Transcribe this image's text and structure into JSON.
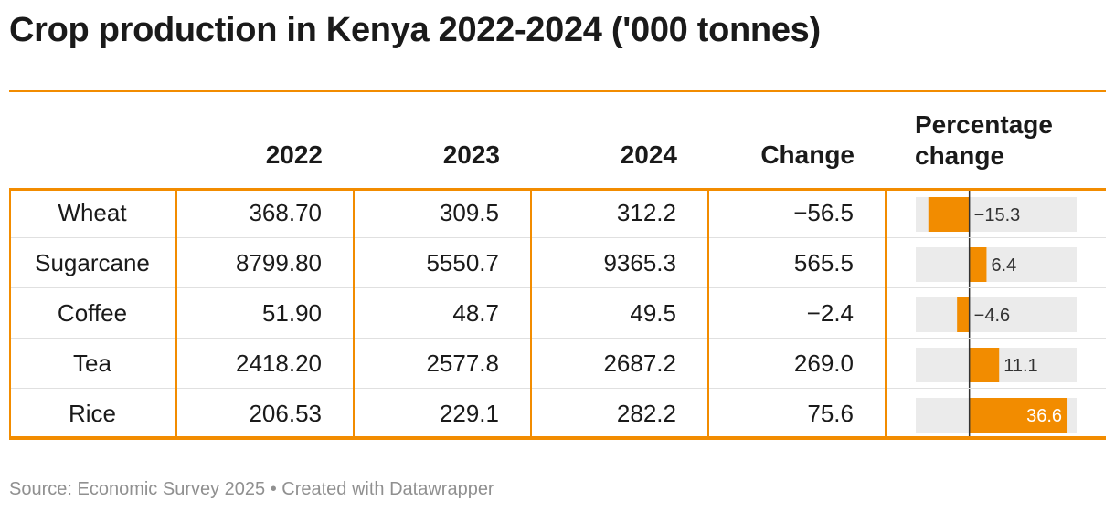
{
  "title": "Crop production in Kenya 2022-2024 ('000 tonnes)",
  "columns": {
    "c2022": "2022",
    "c2023": "2023",
    "c2024": "2024",
    "change": "Change",
    "pct_line1": "Percentage",
    "pct_line2": "change"
  },
  "colors": {
    "accent": "#f28c00",
    "bar_bg": "#ebebeb",
    "zero_line": "#333333"
  },
  "chart_data": {
    "type": "table",
    "title": "Crop production in Kenya 2022-2024 ('000 tonnes)",
    "columns": [
      "2022",
      "2023",
      "2024",
      "Change",
      "Percentage change"
    ],
    "pct_range": [
      -20,
      40
    ],
    "rows": [
      {
        "name": "Wheat",
        "y2022": "368.70",
        "y2023": "309.5",
        "y2024": "312.2",
        "change": "−56.5",
        "pct": -15.3,
        "pct_label": "−15.3"
      },
      {
        "name": "Sugarcane",
        "y2022": "8799.80",
        "y2023": "5550.7",
        "y2024": "9365.3",
        "change": "565.5",
        "pct": 6.4,
        "pct_label": "6.4"
      },
      {
        "name": "Coffee",
        "y2022": "51.90",
        "y2023": "48.7",
        "y2024": "49.5",
        "change": "−2.4",
        "pct": -4.6,
        "pct_label": "−4.6"
      },
      {
        "name": "Tea",
        "y2022": "2418.20",
        "y2023": "2577.8",
        "y2024": "2687.2",
        "change": "269.0",
        "pct": 11.1,
        "pct_label": "11.1"
      },
      {
        "name": "Rice",
        "y2022": "206.53",
        "y2023": "229.1",
        "y2024": "282.2",
        "change": "75.6",
        "pct": 36.6,
        "pct_label": "36.6"
      }
    ]
  },
  "source": "Source: Economic Survey 2025 • Created with Datawrapper"
}
